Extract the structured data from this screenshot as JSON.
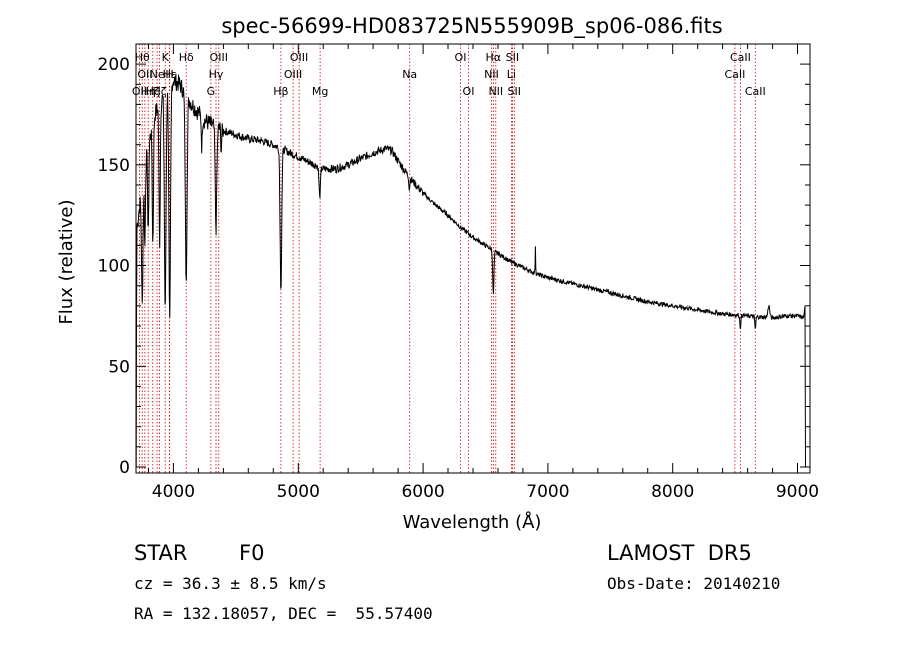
{
  "chart_data": {
    "type": "line",
    "title": "spec-56699-HD083725N555909B_sp06-086.fits",
    "xlabel": "Wavelength (Å)",
    "ylabel": "Flux (relative)",
    "xlim": [
      3700,
      9100
    ],
    "ylim": [
      -3,
      210
    ],
    "xticks": [
      4000,
      5000,
      6000,
      7000,
      8000,
      9000
    ],
    "yticks": [
      0,
      50,
      100,
      150,
      200
    ],
    "grid": false,
    "line_color": "#000000",
    "marker_color": "#cc0000",
    "continuum": [
      [
        3710,
        120
      ],
      [
        3760,
        145
      ],
      [
        3800,
        160
      ],
      [
        3850,
        175
      ],
      [
        3900,
        182
      ],
      [
        3950,
        188
      ],
      [
        4000,
        192
      ],
      [
        4050,
        190
      ],
      [
        4100,
        185
      ],
      [
        4150,
        180
      ],
      [
        4200,
        176
      ],
      [
        4250,
        172
      ],
      [
        4300,
        170
      ],
      [
        4400,
        167
      ],
      [
        4500,
        165
      ],
      [
        4600,
        163
      ],
      [
        4700,
        162
      ],
      [
        4800,
        160
      ],
      [
        4900,
        157
      ],
      [
        5000,
        154
      ],
      [
        5100,
        151
      ],
      [
        5200,
        148
      ],
      [
        5300,
        148
      ],
      [
        5400,
        150
      ],
      [
        5500,
        153
      ],
      [
        5600,
        156
      ],
      [
        5700,
        158
      ],
      [
        5750,
        157
      ],
      [
        5800,
        152
      ],
      [
        5900,
        143
      ],
      [
        6000,
        136
      ],
      [
        6100,
        130
      ],
      [
        6200,
        125
      ],
      [
        6300,
        119
      ],
      [
        6400,
        114
      ],
      [
        6500,
        110
      ],
      [
        6600,
        106
      ],
      [
        6700,
        102
      ],
      [
        6800,
        99
      ],
      [
        6900,
        96
      ],
      [
        7000,
        94
      ],
      [
        7200,
        91
      ],
      [
        7400,
        88
      ],
      [
        7600,
        85
      ],
      [
        7800,
        82
      ],
      [
        8000,
        80
      ],
      [
        8200,
        78
      ],
      [
        8400,
        76
      ],
      [
        8600,
        75
      ],
      [
        8800,
        74
      ],
      [
        8900,
        75
      ],
      [
        9000,
        75
      ],
      [
        9050,
        74
      ]
    ],
    "absorption": [
      [
        3750,
        60,
        8
      ],
      [
        3771,
        40,
        6
      ],
      [
        3798,
        45,
        6
      ],
      [
        3835,
        60,
        7
      ],
      [
        3889,
        70,
        7
      ],
      [
        3934,
        110,
        9
      ],
      [
        3970,
        120,
        9
      ],
      [
        4102,
        90,
        10
      ],
      [
        4227,
        15,
        5
      ],
      [
        4341,
        50,
        9
      ],
      [
        4383,
        10,
        5
      ],
      [
        4861,
        70,
        9
      ],
      [
        5172,
        15,
        8
      ],
      [
        5890,
        6,
        5
      ],
      [
        6563,
        22,
        7
      ],
      [
        8542,
        6,
        6
      ],
      [
        8662,
        6,
        6
      ]
    ],
    "emission": [
      [
        6900,
        14,
        3
      ],
      [
        8770,
        6,
        10
      ]
    ],
    "line_markers": [
      {
        "x": 3727,
        "label": "OII",
        "row": 2
      },
      {
        "x": 3750,
        "label": "Hθ",
        "row": 0
      },
      {
        "x": 3771,
        "label": "OII",
        "row": 1
      },
      {
        "x": 3798,
        "label": "Hη",
        "row": 2
      },
      {
        "x": 3835,
        "label": "Hζ",
        "row": 2
      },
      {
        "x": 3869,
        "label": "Ne",
        "row": 1
      },
      {
        "x": 3889,
        "label": "Hζ",
        "row": 2
      },
      {
        "x": 3934,
        "label": "K",
        "row": 0
      },
      {
        "x": 3968,
        "label": "H",
        "row": 1
      },
      {
        "x": 3970,
        "label": "Hε",
        "row": 1
      },
      {
        "x": 4102,
        "label": "Hδ",
        "row": 0
      },
      {
        "x": 4300,
        "label": "G",
        "row": 2
      },
      {
        "x": 4341,
        "label": "Hγ",
        "row": 1
      },
      {
        "x": 4363,
        "label": "OIII",
        "row": 0
      },
      {
        "x": 4861,
        "label": "Hβ",
        "row": 2
      },
      {
        "x": 4959,
        "label": "OIII",
        "row": 1
      },
      {
        "x": 5007,
        "label": "OIII",
        "row": 0
      },
      {
        "x": 5175,
        "label": "Mg",
        "row": 2
      },
      {
        "x": 5893,
        "label": "Na",
        "row": 1
      },
      {
        "x": 6300,
        "label": "OI",
        "row": 0
      },
      {
        "x": 6364,
        "label": "OI",
        "row": 2
      },
      {
        "x": 6548,
        "label": "NII",
        "row": 1
      },
      {
        "x": 6563,
        "label": "Hα",
        "row": 0
      },
      {
        "x": 6583,
        "label": "NII",
        "row": 2
      },
      {
        "x": 6708,
        "label": "Li",
        "row": 1
      },
      {
        "x": 6716,
        "label": "SII",
        "row": 0
      },
      {
        "x": 6731,
        "label": "SII",
        "row": 2
      },
      {
        "x": 8498,
        "label": "CaII",
        "row": 1
      },
      {
        "x": 8542,
        "label": "CaII",
        "row": 0
      },
      {
        "x": 8662,
        "label": "CaII",
        "row": 2
      }
    ]
  },
  "info": {
    "obj_class": "STAR",
    "subclass": "F0",
    "survey": "LAMOST  DR5",
    "cz": "cz = 36.3 ± 8.5 km/s",
    "obs_date": "Obs-Date: 20140210",
    "radec": "RA = 132.18057, DEC =  55.57400"
  }
}
